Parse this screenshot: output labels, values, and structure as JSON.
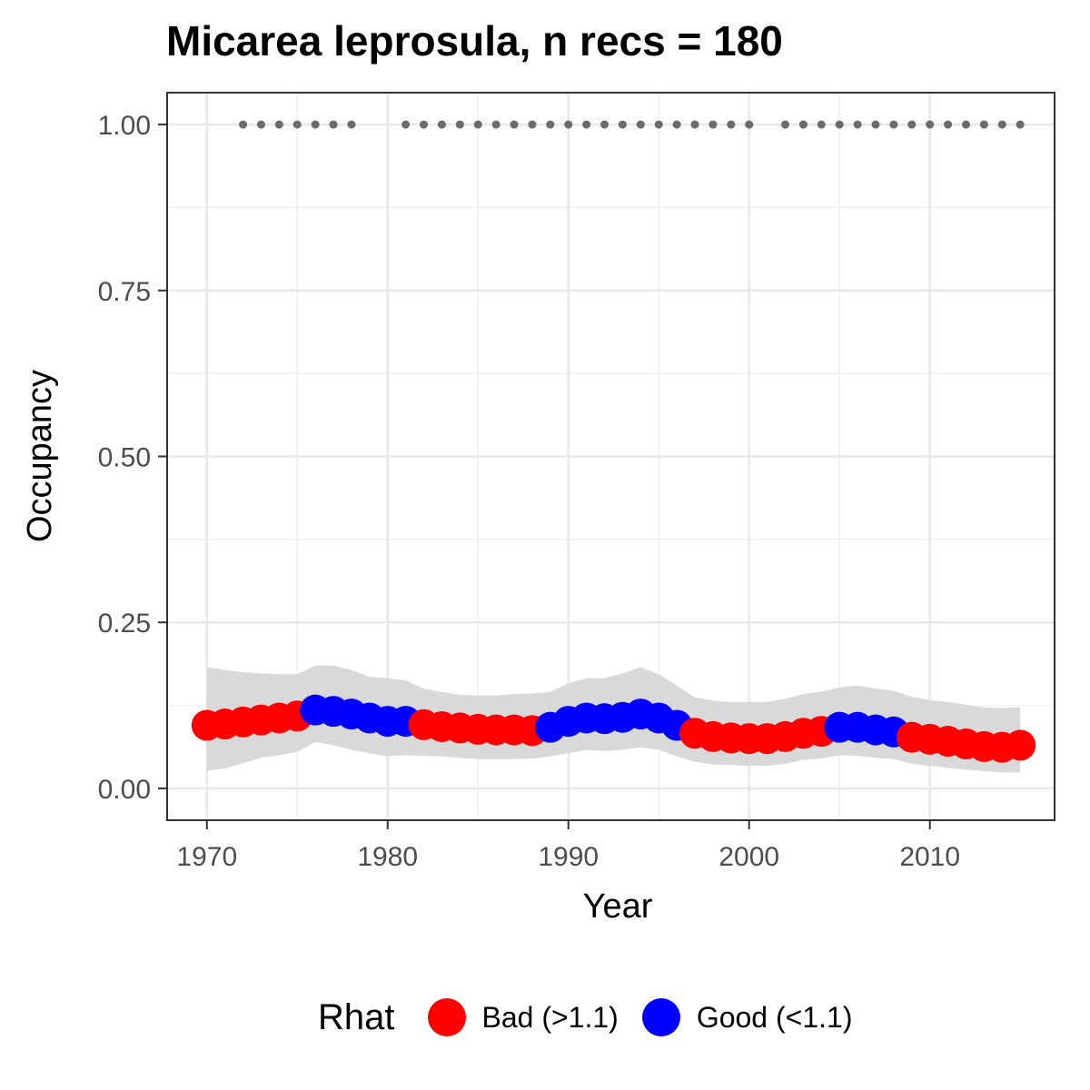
{
  "chart_data": {
    "type": "line",
    "title": "Micarea leprosula, n recs = 180",
    "xlabel": "Year",
    "ylabel": "Occupancy",
    "xlim": [
      1967.8,
      2016.9
    ],
    "ylim": [
      -0.048,
      1.048
    ],
    "x_ticks": [
      "1970",
      "1980",
      "1990",
      "2000",
      "2010"
    ],
    "y_ticks": [
      "0.00",
      "0.25",
      "0.50",
      "0.75",
      "1.00"
    ],
    "grid": true,
    "legend": {
      "title": "Rhat",
      "position": "bottom",
      "entries": [
        {
          "label": "Bad (>1.1)",
          "color": "#ff0000"
        },
        {
          "label": "Good (<1.1)",
          "color": "#0000ff"
        }
      ]
    },
    "series": [
      {
        "x": [
          1970,
          1971,
          1972,
          1973,
          1974,
          1975,
          1976,
          1977,
          1978,
          1979,
          1980,
          1981,
          1982,
          1983,
          1984,
          1985,
          1986,
          1987,
          1988,
          1989,
          1990,
          1991,
          1992,
          1993,
          1994,
          1995,
          1996,
          1997,
          1998,
          1999,
          2000,
          2001,
          2002,
          2003,
          2004,
          2005,
          2006,
          2007,
          2008,
          2009,
          2010,
          2011,
          2012,
          2013,
          2014,
          2015
        ],
        "mean": [
          0.095,
          0.097,
          0.1,
          0.103,
          0.106,
          0.109,
          0.118,
          0.116,
          0.112,
          0.106,
          0.101,
          0.101,
          0.096,
          0.093,
          0.091,
          0.089,
          0.088,
          0.088,
          0.087,
          0.092,
          0.101,
          0.106,
          0.105,
          0.107,
          0.112,
          0.106,
          0.095,
          0.083,
          0.078,
          0.076,
          0.075,
          0.075,
          0.078,
          0.083,
          0.086,
          0.092,
          0.092,
          0.088,
          0.085,
          0.077,
          0.074,
          0.071,
          0.067,
          0.063,
          0.062,
          0.065
        ],
        "lower": [
          0.026,
          0.03,
          0.038,
          0.046,
          0.05,
          0.055,
          0.07,
          0.065,
          0.058,
          0.053,
          0.048,
          0.05,
          0.049,
          0.048,
          0.046,
          0.044,
          0.044,
          0.044,
          0.045,
          0.048,
          0.053,
          0.058,
          0.056,
          0.058,
          0.062,
          0.058,
          0.048,
          0.04,
          0.036,
          0.035,
          0.034,
          0.034,
          0.037,
          0.043,
          0.045,
          0.05,
          0.049,
          0.046,
          0.044,
          0.037,
          0.034,
          0.031,
          0.028,
          0.026,
          0.024,
          0.024
        ],
        "upper": [
          0.183,
          0.178,
          0.175,
          0.173,
          0.172,
          0.172,
          0.185,
          0.185,
          0.178,
          0.168,
          0.166,
          0.163,
          0.15,
          0.145,
          0.141,
          0.14,
          0.14,
          0.142,
          0.143,
          0.145,
          0.158,
          0.166,
          0.166,
          0.173,
          0.183,
          0.172,
          0.155,
          0.137,
          0.132,
          0.13,
          0.13,
          0.13,
          0.135,
          0.142,
          0.146,
          0.152,
          0.155,
          0.15,
          0.147,
          0.138,
          0.133,
          0.13,
          0.126,
          0.122,
          0.121,
          0.122
        ],
        "rhat": [
          "Bad",
          "Bad",
          "Bad",
          "Bad",
          "Bad",
          "Bad",
          "Good",
          "Good",
          "Good",
          "Good",
          "Good",
          "Good",
          "Bad",
          "Bad",
          "Bad",
          "Bad",
          "Bad",
          "Bad",
          "Bad",
          "Good",
          "Good",
          "Good",
          "Good",
          "Good",
          "Good",
          "Good",
          "Good",
          "Bad",
          "Bad",
          "Bad",
          "Bad",
          "Bad",
          "Bad",
          "Bad",
          "Bad",
          "Good",
          "Good",
          "Good",
          "Good",
          "Bad",
          "Bad",
          "Bad",
          "Bad",
          "Bad",
          "Bad",
          "Bad"
        ]
      }
    ],
    "record_years": {
      "y": 1.0,
      "x": [
        1972,
        1973,
        1974,
        1975,
        1976,
        1977,
        1978,
        1981,
        1982,
        1983,
        1984,
        1985,
        1986,
        1987,
        1988,
        1989,
        1990,
        1991,
        1992,
        1993,
        1994,
        1995,
        1996,
        1997,
        1998,
        1999,
        2000,
        2002,
        2003,
        2004,
        2005,
        2006,
        2007,
        2008,
        2009,
        2010,
        2011,
        2012,
        2013,
        2014,
        2015
      ]
    },
    "colors": {
      "bad": "#ff0000",
      "good": "#0000ff",
      "ribbon": "#d9d9d9",
      "record_points": "#6b6b6b"
    }
  }
}
